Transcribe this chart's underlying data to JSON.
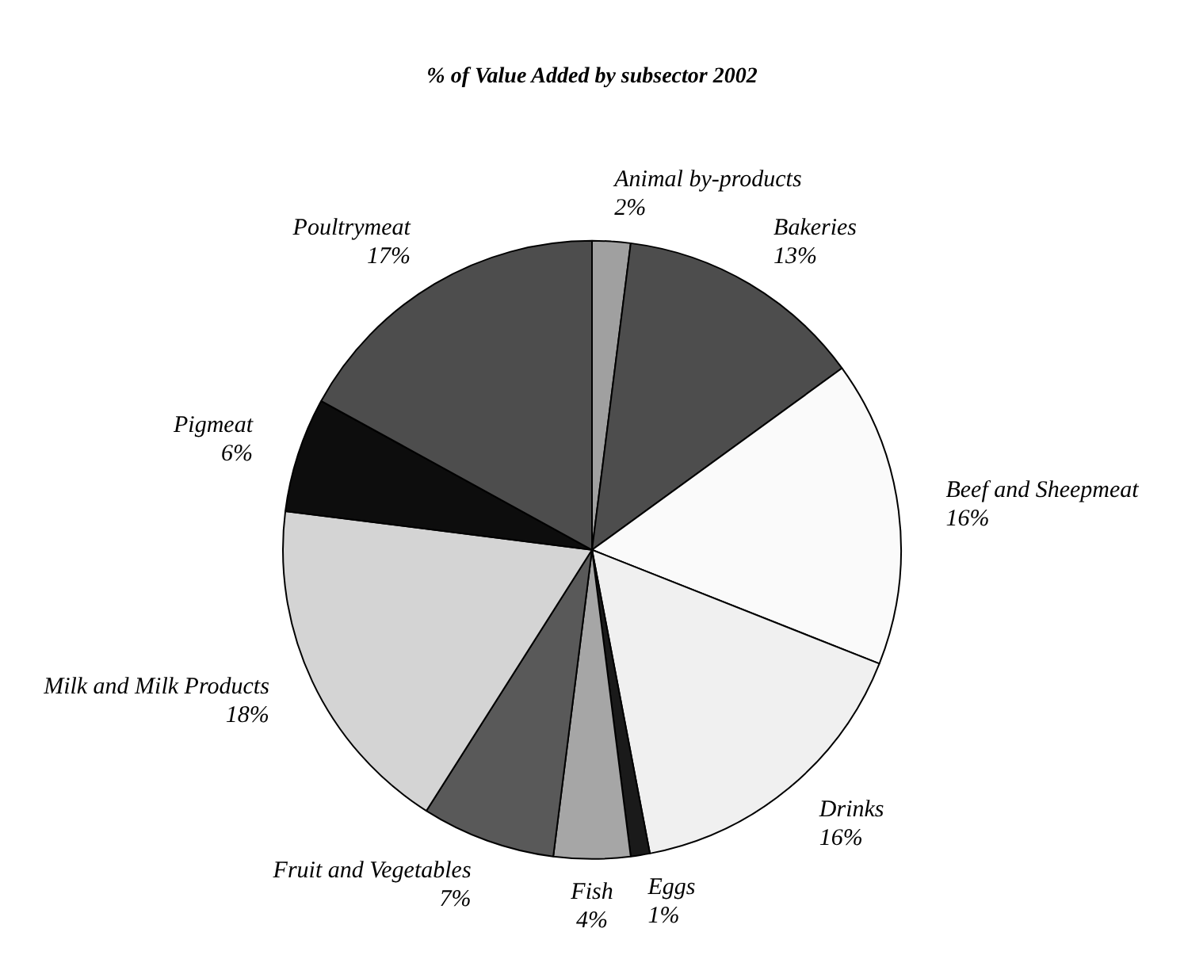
{
  "chart_data": {
    "type": "pie",
    "title": "% of Value Added by subsector 2002",
    "categories": [
      "Animal by-products",
      "Bakeries",
      "Beef and Sheepmeat",
      "Drinks",
      "Eggs",
      "Fish",
      "Fruit and Vegetables",
      "Milk and Milk Products",
      "Pigmeat",
      "Poultrymeat"
    ],
    "values": [
      2,
      13,
      16,
      16,
      1,
      4,
      7,
      18,
      6,
      17
    ],
    "value_labels": [
      "2%",
      "13%",
      "16%",
      "16%",
      "1%",
      "4%",
      "7%",
      "18%",
      "6%",
      "17%"
    ],
    "colors": [
      "#a0a0a0",
      "#4d4d4d",
      "#fafafa",
      "#f0f0f0",
      "#1a1a1a",
      "#a6a6a6",
      "#595959",
      "#d4d4d4",
      "#0d0d0d",
      "#4d4d4d"
    ],
    "legend": false
  }
}
